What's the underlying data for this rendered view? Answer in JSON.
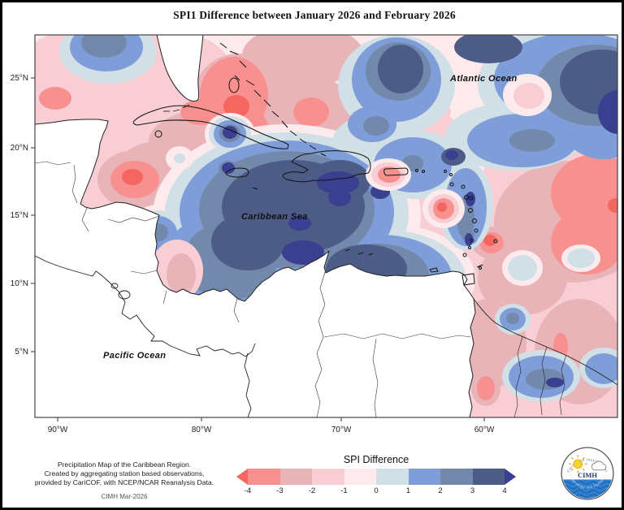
{
  "title": "SPI1 Difference between January 2026 and February 2026",
  "map": {
    "sea_labels": {
      "atlantic": "Atlantic Ocean",
      "caribbean": "Caribbean Sea",
      "pacific": "Pacific Ocean"
    },
    "lat_labels": [
      "25°N",
      "20°N",
      "15°N",
      "10°N",
      "5°N"
    ],
    "lon_labels": [
      "90°W",
      "80°W",
      "70°W",
      "60°W"
    ]
  },
  "legend": {
    "title": "SPI Difference",
    "ticks": [
      "-4",
      "-3",
      "-2",
      "-1",
      "0",
      "1",
      "2",
      "3",
      "4"
    ],
    "segment_colors": [
      "#f99090",
      "#e9b4b8",
      "#f8ced4",
      "#fdeaed",
      "#d0e0e6",
      "#7f9dd8",
      "#7289ac",
      "#4d5c86"
    ],
    "arrow_left_color": "#f4665f",
    "arrow_right_color": "#3a3f90"
  },
  "credits": {
    "line1": "Precipitation Map of the Caribbean Region.",
    "line2": "Created by aggregating station based observations,",
    "line3": "provided by CariCOF, with NCEP/NCAR Reanalysis Data.",
    "stamp": "CIMH Mar-2026"
  },
  "logo": {
    "text": "CIMH",
    "arc_top": "Caribbean Institute for",
    "arc_bottom": "Meteorology and Hydrology"
  },
  "chart_data": {
    "type": "heatmap",
    "title": "SPI1 Difference between January 2026 and February 2026",
    "legend_title": "SPI Difference",
    "scale_ticks": [
      -4,
      -3,
      -2,
      -1,
      0,
      1,
      2,
      3,
      4
    ],
    "scale_colors": [
      "#f99090",
      "#e9b4b8",
      "#f8ced4",
      "#fdeaed",
      "#d0e0e6",
      "#7f9dd8",
      "#7289ac",
      "#4d5c86"
    ],
    "lat_range_deg_n": [
      3,
      27
    ],
    "lon_range_deg_w": [
      92,
      51
    ],
    "notable_regions": [
      {
        "area": "central Caribbean Sea",
        "spi_difference": 3.5
      },
      {
        "area": "northeast Atlantic corner",
        "spi_difference": 3
      },
      {
        "area": "Bahamas / north of Cuba",
        "spi_difference": -3
      },
      {
        "area": "east of Lesser Antilles",
        "spi_difference": -3
      },
      {
        "area": "Guyana coast",
        "spi_difference": 2.5
      },
      {
        "area": "Gulf of Mexico and west Atlantic",
        "spi_difference": -1
      }
    ]
  }
}
